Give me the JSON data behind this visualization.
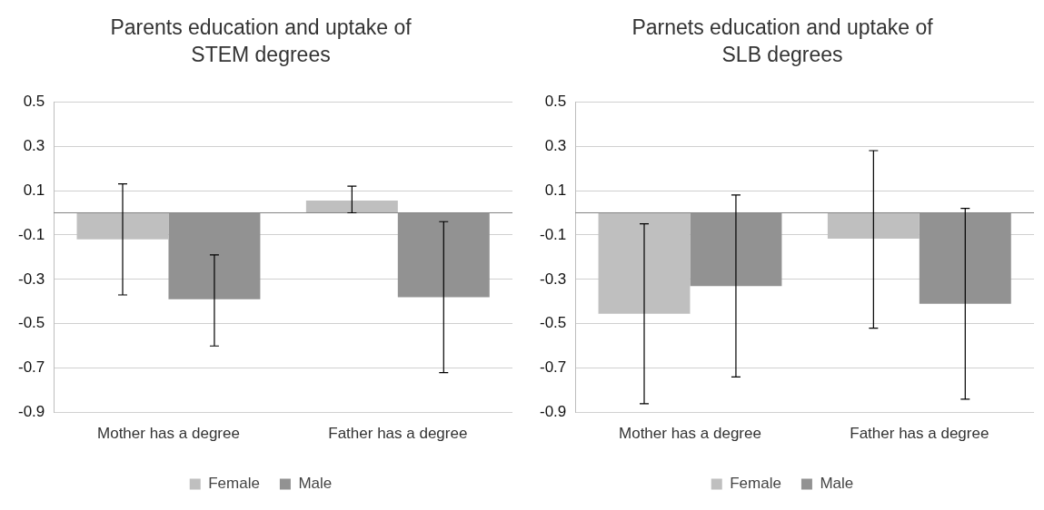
{
  "chart_data": [
    {
      "type": "bar",
      "title": "Parents education and uptake of STEM degrees",
      "categories": [
        "Mother has a degree",
        "Father has a degree"
      ],
      "series": [
        {
          "name": "Female",
          "color": "#bfbfbf",
          "values": [
            -0.12,
            0.055
          ],
          "errors": [
            [
              -0.37,
              0.13
            ],
            [
              0.0,
              0.12
            ]
          ]
        },
        {
          "name": "Male",
          "color": "#929292",
          "values": [
            -0.39,
            -0.38
          ],
          "errors": [
            [
              -0.6,
              -0.19
            ],
            [
              -0.72,
              -0.04
            ]
          ]
        }
      ],
      "ylim": [
        -0.9,
        0.5
      ],
      "yticks": [
        -0.9,
        -0.7,
        -0.5,
        -0.3,
        -0.1,
        0.1,
        0.3,
        0.5
      ],
      "grid": "y",
      "legend": "bottom"
    },
    {
      "type": "bar",
      "title": "Parnets education and uptake of SLB degrees",
      "categories": [
        "Mother has a degree",
        "Father has a degree"
      ],
      "series": [
        {
          "name": "Female",
          "color": "#bfbfbf",
          "values": [
            -0.455,
            -0.117
          ],
          "errors": [
            [
              -0.86,
              -0.05
            ],
            [
              -0.52,
              0.28
            ]
          ]
        },
        {
          "name": "Male",
          "color": "#929292",
          "values": [
            -0.33,
            -0.41
          ],
          "errors": [
            [
              -0.74,
              0.08
            ],
            [
              -0.84,
              0.02
            ]
          ]
        }
      ],
      "ylim": [
        -0.9,
        0.5
      ],
      "yticks": [
        -0.9,
        -0.7,
        -0.5,
        -0.3,
        -0.1,
        0.1,
        0.3,
        0.5
      ],
      "grid": "y",
      "legend": "bottom"
    }
  ]
}
